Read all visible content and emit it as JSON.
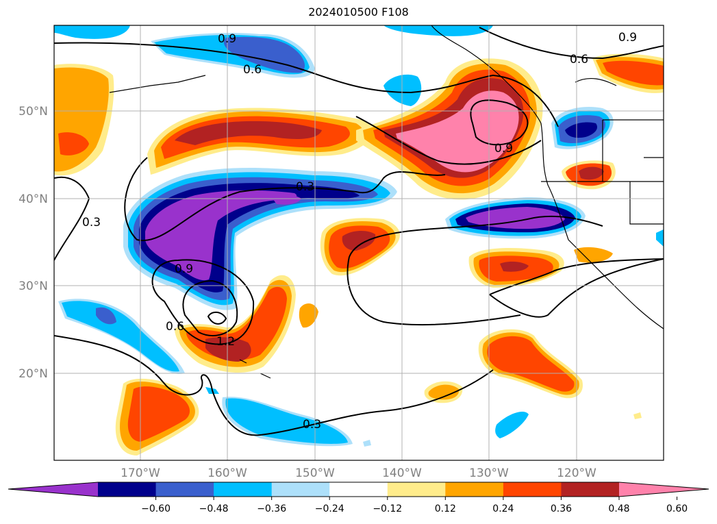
{
  "title": "2024010500 F108",
  "map": {
    "lat_labels": [
      "50°N",
      "40°N",
      "30°N",
      "20°N"
    ],
    "lon_labels": [
      "170°W",
      "160°W",
      "150°W",
      "140°W",
      "130°W",
      "120°W"
    ],
    "contour_labels": [
      "0.9",
      "0.6",
      "0.6",
      "0.9",
      "0.9",
      "0.3",
      "0.3",
      "0.9",
      "0.6",
      "1.2",
      "0.3"
    ]
  },
  "colorbar": {
    "ticks": [
      "−0.60",
      "−0.48",
      "−0.36",
      "−0.24",
      "−0.12",
      "0.12",
      "0.24",
      "0.36",
      "0.48",
      "0.60"
    ],
    "colors": [
      "#9932CC",
      "#00008B",
      "#3A5FCD",
      "#00BFFF",
      "#ADE0FA",
      "#FFFFFF",
      "#FFEC8B",
      "#FFA500",
      "#FF4500",
      "#B22222",
      "#FF82AB"
    ]
  }
}
